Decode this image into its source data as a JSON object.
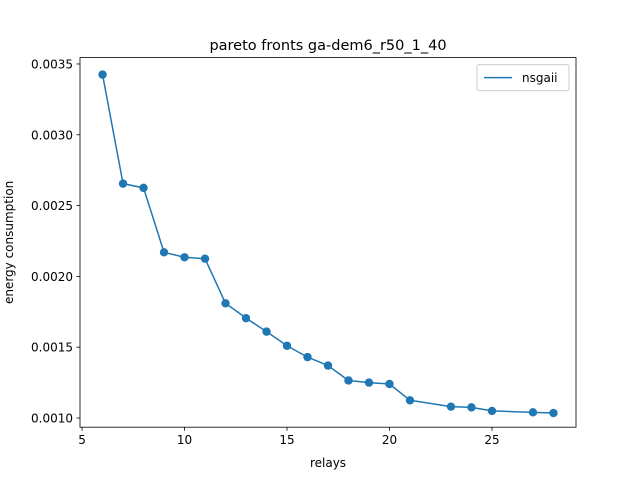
{
  "chart_data": {
    "type": "line",
    "title": "pareto fronts ga-dem6_r50_1_40",
    "xlabel": "relays",
    "ylabel": "energy consumption",
    "xlim": [
      4.9,
      29.1
    ],
    "ylim": [
      0.000935,
      0.003545
    ],
    "xticks": [
      5,
      10,
      15,
      20,
      25
    ],
    "yticks": [
      0.001,
      0.0015,
      0.002,
      0.0025,
      0.003,
      0.0035
    ],
    "ytick_labels": [
      "0.0010",
      "0.0015",
      "0.0020",
      "0.0025",
      "0.0030",
      "0.0035"
    ],
    "xtick_labels": [
      "5",
      "10",
      "15",
      "20",
      "25"
    ],
    "grid": false,
    "legend_position": "top-right",
    "series_color": "#1f77b4",
    "series": [
      {
        "name": "nsgaii",
        "x": [
          6,
          7,
          8,
          9,
          10,
          11,
          12,
          13,
          14,
          15,
          16,
          17,
          18,
          19,
          20,
          21,
          23,
          24,
          25,
          27,
          28
        ],
        "y": [
          0.003425,
          0.002655,
          0.002625,
          0.00217,
          0.002135,
          0.002125,
          0.00181,
          0.001705,
          0.00161,
          0.00151,
          0.00143,
          0.00137,
          0.001265,
          0.00125,
          0.00124,
          0.001125,
          0.00108,
          0.001075,
          0.00105,
          0.00104,
          0.001035
        ]
      }
    ]
  }
}
